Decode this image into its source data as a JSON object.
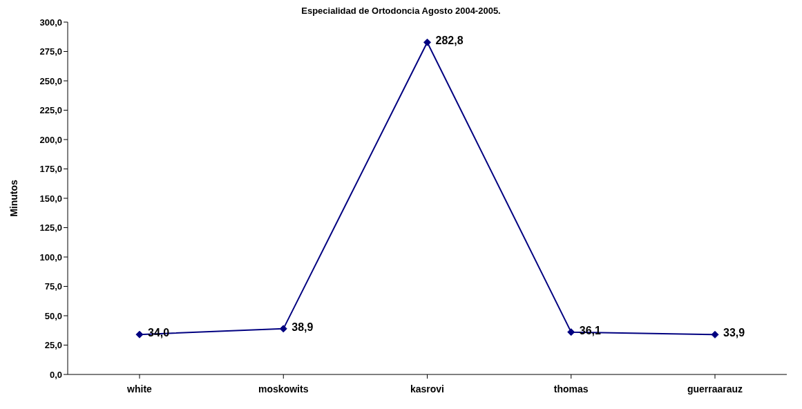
{
  "chart_data": {
    "type": "line",
    "title": "Especialidad de Ortodoncia Agosto 2004-2005.",
    "ylabel": "Minutos",
    "categories": [
      "white",
      "moskowits",
      "kasrovi",
      "thomas",
      "guerraarauz"
    ],
    "series": [
      {
        "color": "#000080",
        "values": [
          34.0,
          38.9,
          282.8,
          36.1,
          33.9
        ],
        "value_labels": [
          "34,0",
          "38,9",
          "282,8",
          "36,1",
          "33,9"
        ]
      }
    ],
    "ylim": [
      0,
      300
    ],
    "yticks": [
      {
        "value": 0,
        "label": "0,0"
      },
      {
        "value": 25,
        "label": "25,0"
      },
      {
        "value": 50,
        "label": "50,0"
      },
      {
        "value": 75,
        "label": "75,0"
      },
      {
        "value": 100,
        "label": "100,0"
      },
      {
        "value": 125,
        "label": "125,0"
      },
      {
        "value": 150,
        "label": "150,0"
      },
      {
        "value": 175,
        "label": "175,0"
      },
      {
        "value": 200,
        "label": "200,0"
      },
      {
        "value": 225,
        "label": "225,0"
      },
      {
        "value": 250,
        "label": "250,0"
      },
      {
        "value": 275,
        "label": "275,0"
      },
      {
        "value": 300,
        "label": "300,0"
      }
    ],
    "marker": "diamond",
    "line_style": "solid"
  }
}
